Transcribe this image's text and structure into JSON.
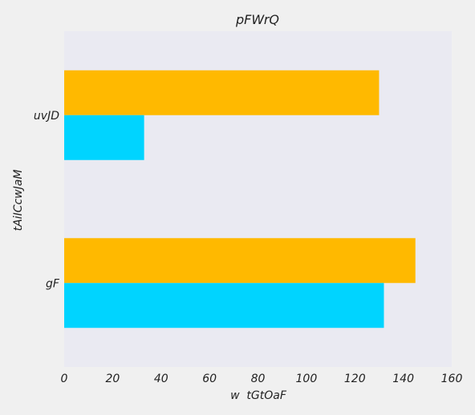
{
  "chart_data": {
    "type": "bar",
    "orientation": "horizontal",
    "title": "pFWrQ",
    "xlabel": "w  tGtOaF",
    "ylabel": "tAiICcwJaM",
    "categories": [
      "uvJD",
      "gF"
    ],
    "series": [
      {
        "color": "#ffb900",
        "values": [
          130,
          145
        ]
      },
      {
        "color": "#00d4ff",
        "values": [
          33,
          132
        ]
      }
    ],
    "xlim": [
      0,
      160
    ],
    "xticks": [
      "0",
      "20",
      "40",
      "60",
      "80",
      "100",
      "120",
      "140",
      "160"
    ],
    "grid": false,
    "legend": "none"
  },
  "colors": {
    "background": "#f0f0f0",
    "plot_area": "#eaeaf2",
    "text": "#222222"
  }
}
